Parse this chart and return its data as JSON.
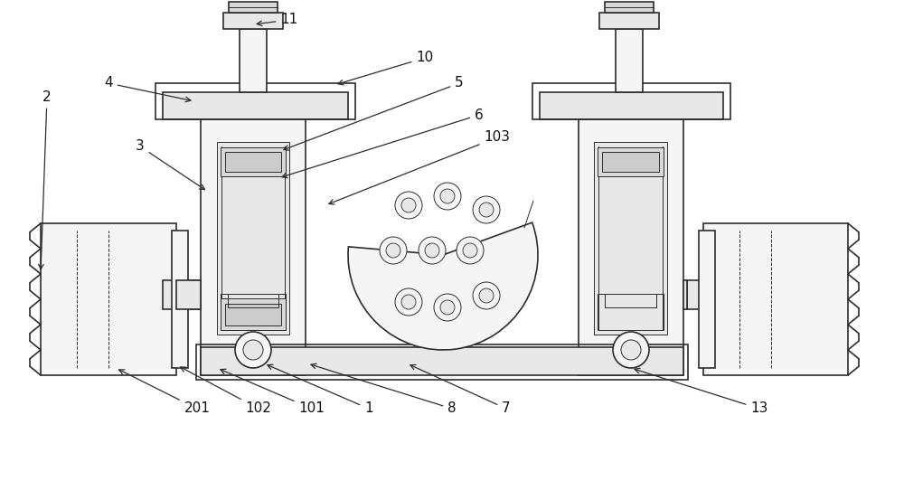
{
  "bg_color": "#ffffff",
  "lc": "#2d2d2d",
  "fc_light": "#f5f5f5",
  "fc_mid": "#e8e8e8",
  "fc_dark": "#d8d8d8",
  "lw_main": 1.2,
  "lw_thin": 0.7,
  "fs": 11,
  "labels": [
    "2",
    "3",
    "4",
    "11",
    "10",
    "5",
    "6",
    "103",
    "201",
    "102",
    "101",
    "1",
    "8",
    "7",
    "13"
  ]
}
